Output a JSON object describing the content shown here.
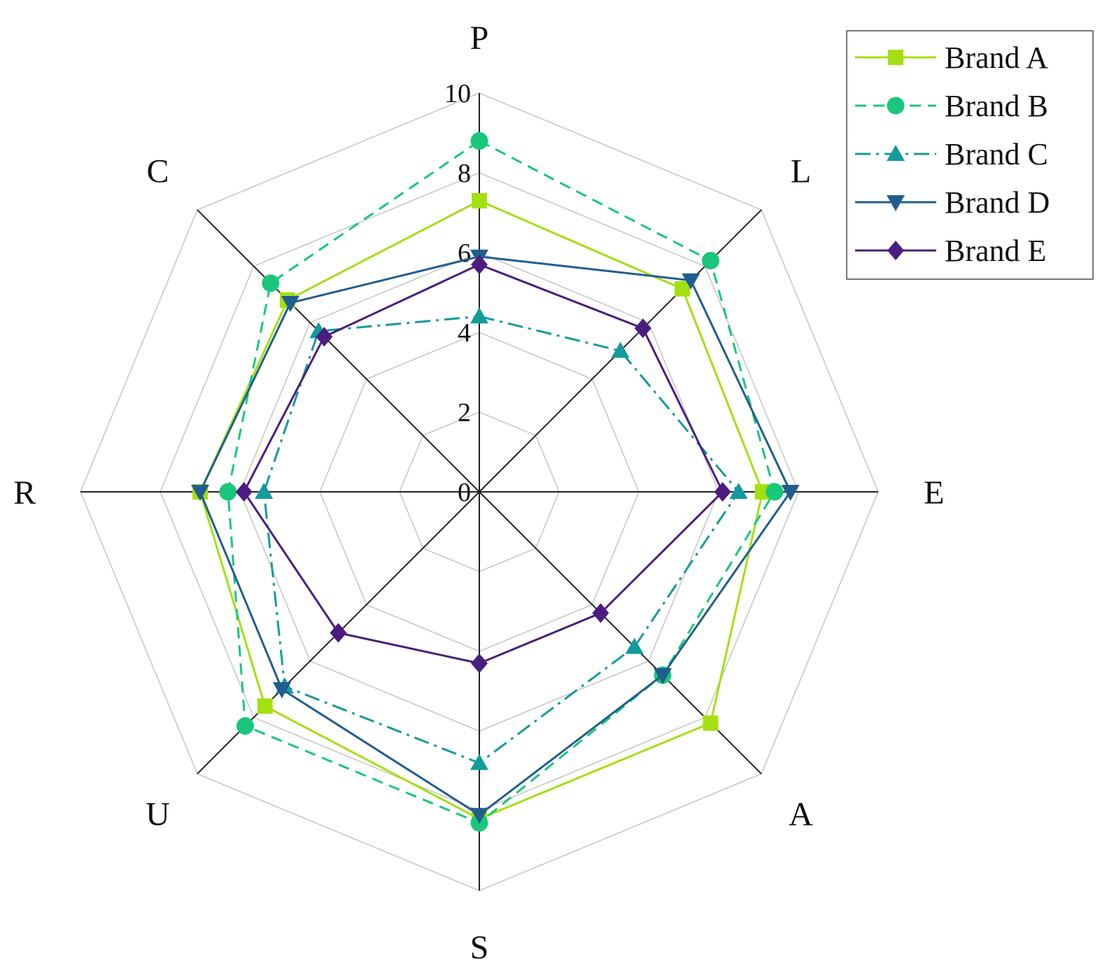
{
  "chart_data": {
    "type": "radar",
    "axes": [
      "P",
      "L",
      "E",
      "A",
      "S",
      "U",
      "R",
      "C"
    ],
    "rlim": [
      0,
      10
    ],
    "ticks": [
      "0",
      "2",
      "4",
      "6",
      "8",
      "10"
    ],
    "tick_values": [
      0,
      2,
      4,
      6,
      8,
      10
    ],
    "grid": true,
    "legend_position": "top-right",
    "series": [
      {
        "name": "Brand A",
        "values": [
          7.3,
          7.2,
          7.1,
          8.2,
          8.2,
          7.6,
          7.0,
          6.8
        ],
        "color": "#a3e011",
        "dash": "",
        "marker": "square"
      },
      {
        "name": "Brand B",
        "values": [
          8.8,
          8.2,
          7.4,
          6.5,
          8.3,
          8.3,
          6.3,
          7.4
        ],
        "color": "#19c77b",
        "dash": "16,10",
        "marker": "circle"
      },
      {
        "name": "Brand C",
        "values": [
          4.4,
          5.0,
          6.5,
          5.5,
          6.8,
          6.9,
          5.4,
          5.7
        ],
        "color": "#149b9b",
        "dash": "22,8,4,8",
        "marker": "triangle-up"
      },
      {
        "name": "Brand D",
        "values": [
          5.9,
          7.5,
          7.8,
          6.5,
          8.1,
          7.0,
          7.0,
          6.7
        ],
        "color": "#215d8e",
        "dash": "",
        "marker": "triangle-down"
      },
      {
        "name": "Brand E",
        "values": [
          5.7,
          5.8,
          6.1,
          4.3,
          4.3,
          5.0,
          5.9,
          5.5
        ],
        "color": "#4b1d80",
        "dash": "",
        "marker": "diamond"
      }
    ]
  }
}
